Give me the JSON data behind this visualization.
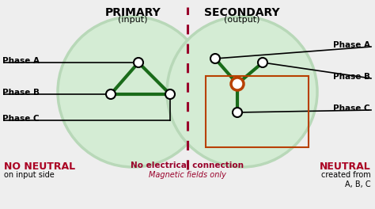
{
  "bg_color": "#eeeeee",
  "circle_color": "#d4ecd4",
  "circle_edge": "#b8d8b8",
  "green_line": "#1a6b1a",
  "red_dashed": "#99002a",
  "orange_circle": "#b84000",
  "text_primary": "PRIMARY",
  "text_input": "(input)",
  "text_secondary": "SECONDARY",
  "text_output": "(output)",
  "text_no_neutral": "NO NEUTRAL",
  "text_on_input": "on input side",
  "text_no_elec": "No electrical connection",
  "text_magnetic": "Magnetic fields only",
  "text_neutral": "NEUTRAL",
  "text_created": "created from\nA, B, C",
  "phase_labels_left": [
    "Phase A",
    "Phase B",
    "Phase C"
  ],
  "phase_labels_right": [
    "Phase A",
    "Phase B",
    "Phase C"
  ],
  "xlim": [
    0,
    474
  ],
  "ylim": [
    0,
    264
  ]
}
